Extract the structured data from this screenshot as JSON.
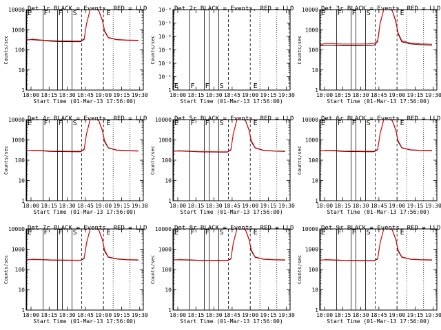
{
  "figure": {
    "xlabel": "Start Time (01-Mar-13 17:56:00)",
    "ylabel": "Counts/sec",
    "x_tick_labels": [
      "18:00",
      "18:15",
      "18:30",
      "18:45",
      "19:00",
      "19:15",
      "19:30"
    ]
  },
  "chart_data": [
    {
      "type": "line",
      "title": "Det 1r BLACK = Events, RED = LLD",
      "yscale": "log",
      "ylim": [
        1,
        10000
      ],
      "y_tick_labels": [
        "1",
        "10",
        "100",
        "1000",
        "10000"
      ],
      "xlim_minutes": [
        0,
        93
      ],
      "markers": [
        "E",
        "F",
        "F",
        "S",
        "E"
      ],
      "marker_minutes": [
        0.5,
        14,
        26,
        38,
        66
      ],
      "series": [
        {
          "name": "Events",
          "color": "#000000",
          "x": [
            0,
            5,
            15,
            20,
            27,
            30,
            40,
            45,
            48,
            50,
            53,
            55,
            58,
            60,
            63,
            65,
            68,
            75,
            83,
            93
          ],
          "values": [
            320,
            320,
            290,
            270,
            260,
            260,
            255,
            255,
            330,
            2000,
            10000,
            10000,
            10000,
            9000,
            3000,
            800,
            400,
            320,
            300,
            290
          ]
        },
        {
          "name": "LLD",
          "color": "#ff0000",
          "x": [
            0,
            5,
            15,
            20,
            27,
            30,
            40,
            45,
            48,
            50,
            53,
            55,
            58,
            60,
            63,
            65,
            68,
            75,
            83,
            93
          ],
          "values": [
            300,
            340,
            300,
            290,
            280,
            280,
            275,
            275,
            350,
            2100,
            10000,
            10000,
            10000,
            9500,
            3200,
            900,
            420,
            330,
            310,
            300
          ]
        }
      ]
    },
    {
      "type": "line",
      "title": "Det 2r BLACK = Events, RED = LLD",
      "yscale": "log",
      "ylim": [
        1,
        1e-06
      ],
      "y_tick_labels": [
        "1",
        "10⁻¹",
        "10⁻²",
        "10⁻³",
        "10⁻⁴",
        "10⁻⁵",
        "10⁻⁶"
      ],
      "xlim_minutes": [
        0,
        93
      ],
      "markers": [
        "E",
        "F",
        "F",
        "S",
        "E"
      ],
      "marker_minutes": [
        0.5,
        14,
        26,
        38,
        66
      ],
      "series": []
    },
    {
      "type": "line",
      "title": "Det 3r BLACK = Events, RED = LLD",
      "yscale": "log",
      "ylim": [
        1,
        10000
      ],
      "y_tick_labels": [
        "1",
        "10",
        "100",
        "1000",
        "10000"
      ],
      "xlim_minutes": [
        0,
        93
      ],
      "markers": [
        "E",
        "F",
        "F",
        "S",
        "E"
      ],
      "marker_minutes": [
        0.5,
        14,
        26,
        38,
        66
      ],
      "series": [
        {
          "name": "Events",
          "color": "#000000",
          "x": [
            0,
            5,
            15,
            20,
            27,
            30,
            40,
            45,
            48,
            50,
            53,
            55,
            58,
            60,
            63,
            65,
            68,
            75,
            83,
            93
          ],
          "values": [
            160,
            170,
            165,
            160,
            160,
            160,
            165,
            170,
            260,
            2000,
            10000,
            10000,
            10000,
            9000,
            2500,
            600,
            250,
            200,
            180,
            170
          ]
        },
        {
          "name": "LLD",
          "color": "#ff0000",
          "x": [
            0,
            5,
            15,
            20,
            27,
            30,
            40,
            45,
            48,
            50,
            53,
            55,
            58,
            60,
            63,
            65,
            68,
            75,
            83,
            93
          ],
          "values": [
            180,
            210,
            200,
            195,
            195,
            195,
            200,
            210,
            300,
            2200,
            10000,
            10000,
            10000,
            9500,
            2800,
            700,
            280,
            220,
            200,
            190
          ]
        }
      ]
    },
    {
      "type": "line",
      "title": "Det 4r BLACK = Events, RED = LLD",
      "yscale": "log",
      "ylim": [
        1,
        10000
      ],
      "y_tick_labels": [
        "1",
        "10",
        "100",
        "1000",
        "10000"
      ],
      "xlim_minutes": [
        0,
        93
      ],
      "markers": [
        "E",
        "F",
        "F",
        "S",
        "E"
      ],
      "marker_minutes": [
        0.5,
        14,
        26,
        38,
        66
      ],
      "series": [
        {
          "name": "Events",
          "color": "#000000",
          "x": [
            0,
            5,
            15,
            20,
            27,
            30,
            40,
            45,
            48,
            50,
            53,
            55,
            58,
            60,
            63,
            65,
            68,
            75,
            83,
            93
          ],
          "values": [
            300,
            300,
            285,
            270,
            265,
            265,
            260,
            260,
            330,
            2000,
            10000,
            10000,
            10000,
            9000,
            3000,
            800,
            400,
            310,
            290,
            280
          ]
        },
        {
          "name": "LLD",
          "color": "#ff0000",
          "x": [
            0,
            5,
            15,
            20,
            27,
            30,
            40,
            45,
            48,
            50,
            53,
            55,
            58,
            60,
            63,
            65,
            68,
            75,
            83,
            93
          ],
          "values": [
            290,
            310,
            295,
            285,
            280,
            280,
            275,
            275,
            350,
            2100,
            10000,
            10000,
            10000,
            9500,
            3200,
            900,
            420,
            320,
            300,
            290
          ]
        }
      ]
    },
    {
      "type": "line",
      "title": "Det 5r BLACK = Events, RED = LLD",
      "yscale": "log",
      "ylim": [
        1,
        10000
      ],
      "y_tick_labels": [
        "1",
        "10",
        "100",
        "1000",
        "10000"
      ],
      "xlim_minutes": [
        0,
        93
      ],
      "markers": [
        "E",
        "F",
        "F",
        "S",
        "E"
      ],
      "marker_minutes": [
        0.5,
        14,
        26,
        38,
        66
      ],
      "series": [
        {
          "name": "Events",
          "color": "#000000",
          "x": [
            0,
            5,
            15,
            20,
            27,
            30,
            40,
            45,
            48,
            50,
            53,
            55,
            58,
            60,
            63,
            65,
            68,
            75,
            83,
            93
          ],
          "values": [
            280,
            285,
            270,
            260,
            255,
            255,
            250,
            250,
            320,
            2000,
            10000,
            10000,
            10000,
            9000,
            3000,
            800,
            400,
            300,
            280,
            270
          ]
        },
        {
          "name": "LLD",
          "color": "#ff0000",
          "x": [
            0,
            5,
            15,
            20,
            27,
            30,
            40,
            45,
            48,
            50,
            53,
            55,
            58,
            60,
            63,
            65,
            68,
            75,
            83,
            93
          ],
          "values": [
            270,
            295,
            280,
            270,
            265,
            265,
            260,
            260,
            340,
            2100,
            10000,
            10000,
            10000,
            9500,
            3200,
            900,
            420,
            310,
            290,
            280
          ]
        }
      ]
    },
    {
      "type": "line",
      "title": "Det 6r BLACK = Events, RED = LLD",
      "yscale": "log",
      "ylim": [
        1,
        10000
      ],
      "y_tick_labels": [
        "1",
        "10",
        "100",
        "1000",
        "10000"
      ],
      "xlim_minutes": [
        0,
        93
      ],
      "markers": [
        "E",
        "F",
        "F",
        "S",
        "E"
      ],
      "marker_minutes": [
        0.5,
        14,
        26,
        38,
        66
      ],
      "series": [
        {
          "name": "Events",
          "color": "#000000",
          "x": [
            0,
            5,
            15,
            20,
            27,
            30,
            40,
            45,
            48,
            50,
            53,
            55,
            58,
            60,
            63,
            65,
            68,
            75,
            83,
            93
          ],
          "values": [
            290,
            300,
            280,
            270,
            265,
            265,
            260,
            260,
            330,
            2000,
            10000,
            10000,
            10000,
            9000,
            3000,
            800,
            400,
            320,
            300,
            290
          ]
        },
        {
          "name": "LLD",
          "color": "#ff0000",
          "x": [
            0,
            5,
            15,
            20,
            27,
            30,
            40,
            45,
            48,
            50,
            53,
            55,
            58,
            60,
            63,
            65,
            68,
            75,
            83,
            93
          ],
          "values": [
            280,
            310,
            295,
            285,
            280,
            280,
            275,
            275,
            350,
            2100,
            10000,
            10000,
            10000,
            9500,
            3200,
            900,
            420,
            330,
            310,
            300
          ]
        }
      ]
    },
    {
      "type": "line",
      "title": "Det 7r BLACK = Events, RED = LLD",
      "yscale": "log",
      "ylim": [
        1,
        10000
      ],
      "y_tick_labels": [
        "1",
        "10",
        "100",
        "1000",
        "10000"
      ],
      "xlim_minutes": [
        0,
        93
      ],
      "markers": [
        "E",
        "F",
        "F",
        "S",
        "E"
      ],
      "marker_minutes": [
        0.5,
        14,
        26,
        38,
        66
      ],
      "series": [
        {
          "name": "Events",
          "color": "#000000",
          "x": [
            0,
            5,
            15,
            20,
            27,
            30,
            40,
            45,
            48,
            50,
            53,
            55,
            58,
            60,
            63,
            65,
            68,
            75,
            83,
            93
          ],
          "values": [
            300,
            310,
            300,
            290,
            285,
            285,
            280,
            280,
            340,
            2000,
            10000,
            10000,
            10000,
            9000,
            3000,
            800,
            400,
            330,
            300,
            290
          ]
        },
        {
          "name": "LLD",
          "color": "#ff0000",
          "x": [
            0,
            5,
            15,
            20,
            27,
            30,
            40,
            45,
            48,
            50,
            53,
            55,
            58,
            60,
            63,
            65,
            68,
            75,
            83,
            93
          ],
          "values": [
            290,
            320,
            310,
            300,
            295,
            295,
            290,
            290,
            360,
            2100,
            10000,
            10000,
            10000,
            9500,
            3200,
            900,
            420,
            340,
            310,
            300
          ]
        }
      ]
    },
    {
      "type": "line",
      "title": "Det 8r BLACK = Events, RED = LLD",
      "yscale": "log",
      "ylim": [
        1,
        10000
      ],
      "y_tick_labels": [
        "1",
        "10",
        "100",
        "1000",
        "10000"
      ],
      "xlim_minutes": [
        0,
        93
      ],
      "markers": [
        "E",
        "F",
        "F",
        "S",
        "E"
      ],
      "marker_minutes": [
        0.5,
        14,
        26,
        38,
        66
      ],
      "series": [
        {
          "name": "Events",
          "color": "#000000",
          "x": [
            0,
            5,
            15,
            20,
            27,
            30,
            40,
            45,
            48,
            50,
            53,
            55,
            58,
            60,
            63,
            65,
            68,
            75,
            83,
            93
          ],
          "values": [
            300,
            300,
            290,
            280,
            275,
            275,
            270,
            270,
            330,
            2000,
            10000,
            10000,
            10000,
            9000,
            3000,
            800,
            400,
            320,
            300,
            290
          ]
        },
        {
          "name": "LLD",
          "color": "#ff0000",
          "x": [
            0,
            5,
            15,
            20,
            27,
            30,
            40,
            45,
            48,
            50,
            53,
            55,
            58,
            60,
            63,
            65,
            68,
            75,
            83,
            93
          ],
          "values": [
            290,
            310,
            300,
            290,
            285,
            285,
            280,
            280,
            350,
            2100,
            10000,
            10000,
            10000,
            9500,
            3200,
            900,
            420,
            330,
            310,
            300
          ]
        }
      ]
    },
    {
      "type": "line",
      "title": "Det 9r BLACK = Events, RED = LLD",
      "yscale": "log",
      "ylim": [
        1,
        10000
      ],
      "y_tick_labels": [
        "1",
        "10",
        "100",
        "1000",
        "10000"
      ],
      "xlim_minutes": [
        0,
        93
      ],
      "markers": [
        "E",
        "F",
        "F",
        "S",
        "E"
      ],
      "marker_minutes": [
        0.5,
        14,
        26,
        38,
        66
      ],
      "series": [
        {
          "name": "Events",
          "color": "#000000",
          "x": [
            0,
            5,
            15,
            20,
            27,
            30,
            40,
            45,
            48,
            50,
            53,
            55,
            58,
            60,
            63,
            65,
            68,
            75,
            83,
            93
          ],
          "values": [
            290,
            300,
            285,
            275,
            270,
            270,
            265,
            265,
            330,
            2000,
            10000,
            10000,
            10000,
            9000,
            3000,
            800,
            400,
            320,
            300,
            290
          ]
        },
        {
          "name": "LLD",
          "color": "#ff0000",
          "x": [
            0,
            5,
            15,
            20,
            27,
            30,
            40,
            45,
            48,
            50,
            53,
            55,
            58,
            60,
            63,
            65,
            68,
            75,
            83,
            93
          ],
          "values": [
            280,
            310,
            295,
            285,
            280,
            280,
            275,
            275,
            350,
            2100,
            10000,
            10000,
            10000,
            9500,
            3200,
            900,
            420,
            330,
            310,
            300
          ]
        }
      ]
    }
  ]
}
